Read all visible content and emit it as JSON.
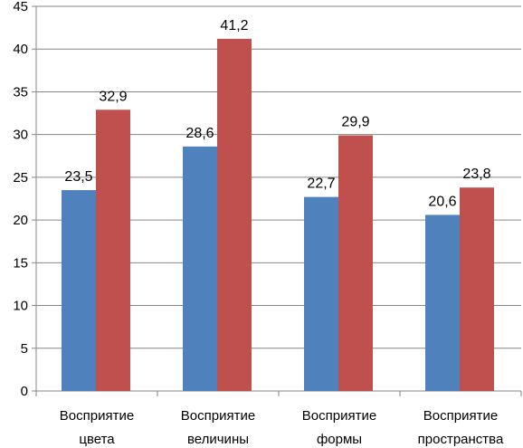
{
  "chart_data": {
    "type": "bar",
    "categories": [
      [
        "Восприятие",
        "цвета"
      ],
      [
        "Восприятие",
        "величины"
      ],
      [
        "Восприятие",
        "формы"
      ],
      [
        "Восприятие",
        "пространства"
      ]
    ],
    "series": [
      {
        "values": [
          23.5,
          28.6,
          22.7,
          20.6
        ],
        "color": "#4F81BD"
      },
      {
        "values": [
          32.9,
          41.2,
          29.9,
          23.8
        ],
        "color": "#C0504D"
      }
    ],
    "data_labels": [
      [
        "23,5",
        "28,6",
        "22,7",
        "20,6"
      ],
      [
        "32,9",
        "41,2",
        "29,9",
        "23,8"
      ]
    ],
    "ylim": [
      0,
      45
    ],
    "y_ticks": [
      "0",
      "5",
      "10",
      "15",
      "20",
      "25",
      "30",
      "35",
      "40",
      "45"
    ],
    "grid": true,
    "legend": "none"
  }
}
